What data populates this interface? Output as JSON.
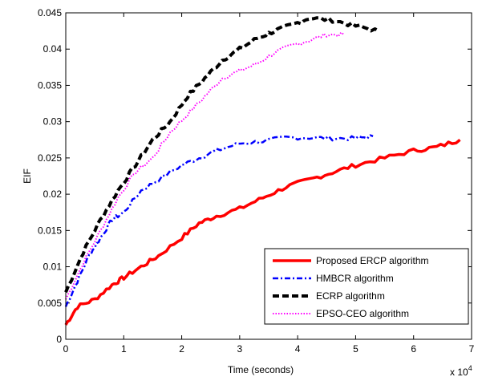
{
  "chart_data": {
    "type": "line",
    "title": "",
    "xlabel": "Time (seconds)",
    "ylabel": "EIF",
    "x_multiplier_label": "x 10",
    "x_multiplier_exponent": "4",
    "xlim": [
      0,
      7
    ],
    "ylim": [
      0,
      0.045
    ],
    "xticks": [
      "0",
      "1",
      "2",
      "3",
      "4",
      "5",
      "6",
      "7"
    ],
    "yticks": [
      "0",
      "0.005",
      "0.01",
      "0.015",
      "0.02",
      "0.025",
      "0.03",
      "0.035",
      "0.04",
      "0.045"
    ],
    "grid": false,
    "legend_position": "bottom-right",
    "series": [
      {
        "name": "Proposed ERCP algorithm",
        "color": "#ff0000",
        "style": "solid",
        "points": [
          [
            0,
            0.002
          ],
          [
            0.2,
            0.0045
          ],
          [
            0.5,
            0.0055
          ],
          [
            0.8,
            0.0075
          ],
          [
            1.0,
            0.0085
          ],
          [
            1.3,
            0.01
          ],
          [
            1.6,
            0.0115
          ],
          [
            2.0,
            0.014
          ],
          [
            2.3,
            0.016
          ],
          [
            2.6,
            0.017
          ],
          [
            3.0,
            0.018
          ],
          [
            3.4,
            0.0195
          ],
          [
            3.8,
            0.021
          ],
          [
            4.2,
            0.022
          ],
          [
            4.6,
            0.023
          ],
          [
            5.0,
            0.024
          ],
          [
            5.5,
            0.025
          ],
          [
            6.0,
            0.026
          ],
          [
            6.4,
            0.0265
          ],
          [
            6.8,
            0.0275
          ]
        ]
      },
      {
        "name": "HMBCR algorithm",
        "color": "#0000ff",
        "style": "dashdot",
        "points": [
          [
            0,
            0.0045
          ],
          [
            0.2,
            0.008
          ],
          [
            0.4,
            0.0115
          ],
          [
            0.6,
            0.014
          ],
          [
            0.8,
            0.0165
          ],
          [
            1.0,
            0.0175
          ],
          [
            1.3,
            0.0205
          ],
          [
            1.6,
            0.022
          ],
          [
            2.0,
            0.024
          ],
          [
            2.3,
            0.025
          ],
          [
            2.6,
            0.026
          ],
          [
            3.0,
            0.027
          ],
          [
            3.4,
            0.0273
          ],
          [
            3.8,
            0.0278
          ],
          [
            4.2,
            0.0278
          ],
          [
            4.6,
            0.0277
          ],
          [
            5.0,
            0.0277
          ],
          [
            5.3,
            0.028
          ]
        ]
      },
      {
        "name": "ECRP algorithm",
        "color": "#000000",
        "style": "dashed",
        "points": [
          [
            0,
            0.0065
          ],
          [
            0.3,
            0.012
          ],
          [
            0.6,
            0.0165
          ],
          [
            0.9,
            0.0205
          ],
          [
            1.2,
            0.024
          ],
          [
            1.5,
            0.0275
          ],
          [
            1.8,
            0.03
          ],
          [
            2.1,
            0.0335
          ],
          [
            2.4,
            0.036
          ],
          [
            2.7,
            0.0385
          ],
          [
            3.0,
            0.04
          ],
          [
            3.3,
            0.0415
          ],
          [
            3.6,
            0.0425
          ],
          [
            3.9,
            0.0433
          ],
          [
            4.2,
            0.0443
          ],
          [
            4.6,
            0.044
          ],
          [
            5.0,
            0.0432
          ],
          [
            5.4,
            0.0425
          ]
        ]
      },
      {
        "name": "EPSO-CEO algorithm",
        "color": "#ff00ff",
        "style": "dotted",
        "points": [
          [
            0,
            0.0055
          ],
          [
            0.3,
            0.0105
          ],
          [
            0.6,
            0.015
          ],
          [
            0.9,
            0.0195
          ],
          [
            1.2,
            0.023
          ],
          [
            1.5,
            0.025
          ],
          [
            1.8,
            0.0285
          ],
          [
            2.1,
            0.031
          ],
          [
            2.4,
            0.0335
          ],
          [
            2.7,
            0.036
          ],
          [
            3.0,
            0.037
          ],
          [
            3.3,
            0.038
          ],
          [
            3.6,
            0.0395
          ],
          [
            3.9,
            0.0405
          ],
          [
            4.2,
            0.0412
          ],
          [
            4.5,
            0.042
          ],
          [
            4.8,
            0.042
          ]
        ]
      }
    ]
  }
}
